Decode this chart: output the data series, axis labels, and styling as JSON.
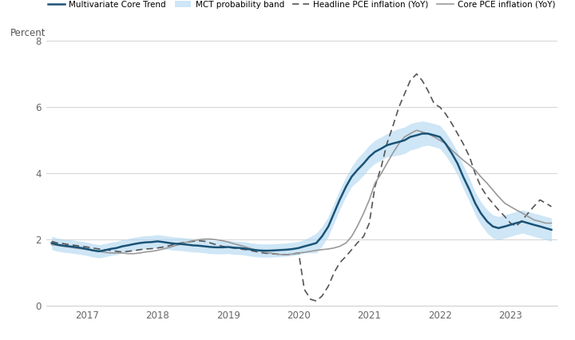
{
  "ylabel_text": "Percent",
  "background_color": "#ffffff",
  "plot_bg_color": "#ffffff",
  "grid_color": "#cccccc",
  "legend_entries": [
    "Multivariate Core Trend",
    "MCT probability band",
    "Headline PCE inflation (YoY)",
    "Core PCE inflation (YoY)"
  ],
  "mct_color": "#1a5276",
  "band_color": "#aed6f1",
  "headline_color": "#555555",
  "core_color": "#999999",
  "ylim": [
    0,
    8
  ],
  "yticks": [
    0,
    2,
    4,
    6,
    8
  ],
  "dates": [
    2016.5,
    2016.58,
    2016.67,
    2016.75,
    2016.83,
    2016.92,
    2017.0,
    2017.08,
    2017.17,
    2017.25,
    2017.33,
    2017.42,
    2017.5,
    2017.58,
    2017.67,
    2017.75,
    2017.83,
    2017.92,
    2018.0,
    2018.08,
    2018.17,
    2018.25,
    2018.33,
    2018.42,
    2018.5,
    2018.58,
    2018.67,
    2018.75,
    2018.83,
    2018.92,
    2019.0,
    2019.08,
    2019.17,
    2019.25,
    2019.33,
    2019.42,
    2019.5,
    2019.58,
    2019.67,
    2019.75,
    2019.83,
    2019.92,
    2020.0,
    2020.08,
    2020.17,
    2020.25,
    2020.33,
    2020.42,
    2020.5,
    2020.58,
    2020.67,
    2020.75,
    2020.83,
    2020.92,
    2021.0,
    2021.08,
    2021.17,
    2021.25,
    2021.33,
    2021.42,
    2021.5,
    2021.58,
    2021.67,
    2021.75,
    2021.83,
    2021.92,
    2022.0,
    2022.08,
    2022.17,
    2022.25,
    2022.33,
    2022.42,
    2022.5,
    2022.58,
    2022.67,
    2022.75,
    2022.83,
    2022.92,
    2023.0,
    2023.08,
    2023.17,
    2023.25,
    2023.33,
    2023.42,
    2023.5,
    2023.58
  ],
  "mct": [
    1.9,
    1.85,
    1.82,
    1.8,
    1.78,
    1.75,
    1.72,
    1.68,
    1.65,
    1.68,
    1.72,
    1.75,
    1.8,
    1.83,
    1.87,
    1.9,
    1.92,
    1.93,
    1.95,
    1.93,
    1.9,
    1.88,
    1.87,
    1.85,
    1.83,
    1.82,
    1.8,
    1.78,
    1.77,
    1.77,
    1.78,
    1.76,
    1.75,
    1.73,
    1.7,
    1.68,
    1.67,
    1.67,
    1.68,
    1.69,
    1.7,
    1.72,
    1.75,
    1.8,
    1.85,
    1.9,
    2.1,
    2.4,
    2.8,
    3.2,
    3.6,
    3.9,
    4.1,
    4.3,
    4.5,
    4.65,
    4.75,
    4.85,
    4.9,
    4.95,
    5.0,
    5.1,
    5.15,
    5.2,
    5.2,
    5.15,
    5.1,
    4.9,
    4.6,
    4.3,
    3.9,
    3.5,
    3.1,
    2.8,
    2.55,
    2.4,
    2.35,
    2.4,
    2.45,
    2.5,
    2.55,
    2.5,
    2.45,
    2.4,
    2.35,
    2.3
  ],
  "mct_upper": [
    2.1,
    2.05,
    2.02,
    2.0,
    1.98,
    1.95,
    1.92,
    1.88,
    1.85,
    1.88,
    1.92,
    1.95,
    2.0,
    2.03,
    2.07,
    2.1,
    2.12,
    2.13,
    2.15,
    2.13,
    2.1,
    2.08,
    2.07,
    2.05,
    2.03,
    2.02,
    2.0,
    1.98,
    1.97,
    1.97,
    1.98,
    1.96,
    1.95,
    1.93,
    1.9,
    1.88,
    1.87,
    1.87,
    1.88,
    1.89,
    1.9,
    1.92,
    1.95,
    2.0,
    2.1,
    2.2,
    2.4,
    2.7,
    3.1,
    3.5,
    3.9,
    4.2,
    4.45,
    4.65,
    4.85,
    5.0,
    5.1,
    5.2,
    5.28,
    5.35,
    5.4,
    5.5,
    5.55,
    5.58,
    5.55,
    5.5,
    5.45,
    5.25,
    4.95,
    4.65,
    4.25,
    3.85,
    3.45,
    3.15,
    2.9,
    2.75,
    2.7,
    2.75,
    2.8,
    2.85,
    2.9,
    2.85,
    2.8,
    2.75,
    2.7,
    2.65
  ],
  "mct_lower": [
    1.7,
    1.65,
    1.62,
    1.6,
    1.58,
    1.55,
    1.52,
    1.48,
    1.45,
    1.48,
    1.52,
    1.55,
    1.6,
    1.63,
    1.67,
    1.7,
    1.72,
    1.73,
    1.75,
    1.73,
    1.7,
    1.68,
    1.67,
    1.65,
    1.63,
    1.62,
    1.6,
    1.58,
    1.57,
    1.57,
    1.58,
    1.56,
    1.55,
    1.53,
    1.5,
    1.48,
    1.47,
    1.47,
    1.48,
    1.49,
    1.5,
    1.52,
    1.55,
    1.6,
    1.6,
    1.6,
    1.8,
    2.1,
    2.5,
    2.9,
    3.3,
    3.6,
    3.75,
    3.95,
    4.15,
    4.3,
    4.4,
    4.5,
    4.52,
    4.55,
    4.6,
    4.7,
    4.75,
    4.82,
    4.85,
    4.8,
    4.75,
    4.55,
    4.25,
    3.95,
    3.55,
    3.15,
    2.75,
    2.45,
    2.2,
    2.05,
    2.0,
    2.05,
    2.1,
    2.15,
    2.2,
    2.15,
    2.1,
    2.05,
    2.0,
    1.95
  ],
  "headline": [
    1.95,
    1.9,
    1.88,
    1.85,
    1.83,
    1.8,
    1.78,
    1.75,
    1.72,
    1.7,
    1.68,
    1.65,
    1.63,
    1.65,
    1.67,
    1.7,
    1.72,
    1.73,
    1.75,
    1.78,
    1.82,
    1.87,
    1.9,
    1.93,
    1.95,
    1.97,
    1.95,
    1.9,
    1.85,
    1.8,
    1.77,
    1.75,
    1.72,
    1.7,
    1.67,
    1.63,
    1.6,
    1.58,
    1.57,
    1.55,
    1.55,
    1.57,
    1.6,
    0.5,
    0.2,
    0.15,
    0.3,
    0.6,
    1.0,
    1.3,
    1.5,
    1.7,
    1.9,
    2.1,
    2.5,
    3.6,
    4.2,
    4.9,
    5.4,
    6.0,
    6.4,
    6.8,
    7.0,
    6.8,
    6.5,
    6.1,
    6.0,
    5.8,
    5.5,
    5.2,
    4.9,
    4.5,
    4.0,
    3.6,
    3.3,
    3.1,
    2.9,
    2.7,
    2.5,
    2.4,
    2.6,
    2.8,
    3.0,
    3.2,
    3.1,
    3.0
  ],
  "core_pce": [
    1.85,
    1.83,
    1.8,
    1.78,
    1.75,
    1.73,
    1.7,
    1.68,
    1.65,
    1.62,
    1.6,
    1.6,
    1.6,
    1.58,
    1.58,
    1.6,
    1.63,
    1.65,
    1.68,
    1.72,
    1.77,
    1.82,
    1.87,
    1.93,
    1.97,
    2.0,
    2.02,
    2.02,
    2.0,
    1.97,
    1.93,
    1.88,
    1.83,
    1.78,
    1.73,
    1.68,
    1.63,
    1.6,
    1.58,
    1.55,
    1.55,
    1.57,
    1.6,
    1.62,
    1.65,
    1.68,
    1.7,
    1.72,
    1.75,
    1.8,
    1.9,
    2.1,
    2.4,
    2.8,
    3.2,
    3.7,
    4.0,
    4.3,
    4.6,
    4.9,
    5.1,
    5.2,
    5.3,
    5.25,
    5.2,
    5.1,
    5.0,
    4.9,
    4.7,
    4.55,
    4.4,
    4.25,
    4.1,
    3.9,
    3.7,
    3.5,
    3.3,
    3.1,
    3.0,
    2.9,
    2.8,
    2.7,
    2.6,
    2.55,
    2.5,
    2.5
  ],
  "xticks": [
    2017,
    2018,
    2019,
    2020,
    2021,
    2022,
    2023
  ],
  "xlim": [
    2016.42,
    2023.67
  ]
}
